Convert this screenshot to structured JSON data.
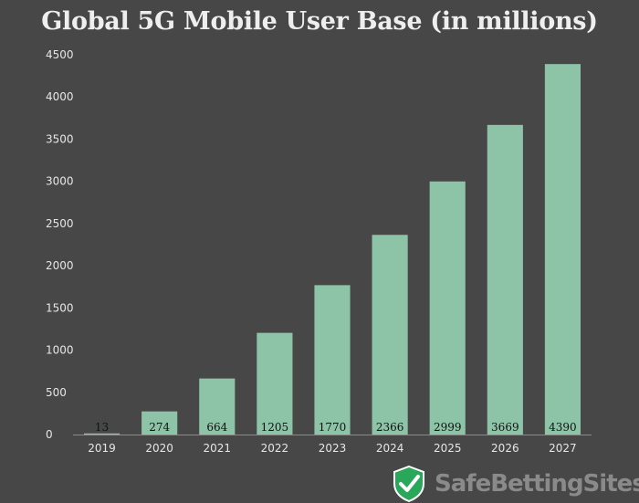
{
  "chart_data": {
    "type": "bar",
    "title": "Global 5G Mobile User Base (in millions)",
    "xlabel": "",
    "ylabel": "",
    "categories": [
      "2019",
      "2020",
      "2021",
      "2022",
      "2023",
      "2024",
      "2025",
      "2026",
      "2027"
    ],
    "values": [
      13,
      274,
      664,
      1205,
      1770,
      2366,
      2999,
      3669,
      4390
    ],
    "data_labels": [
      "13",
      "274",
      "664",
      "1205",
      "1770",
      "2366",
      "2999",
      "3669",
      "4390"
    ],
    "ylim": [
      0,
      4500
    ],
    "yticks": [
      "0",
      "500",
      "1000",
      "1500",
      "2000",
      "2500",
      "3000",
      "3500",
      "4000",
      "4500"
    ],
    "grid": false,
    "legend": "none",
    "bar_color": "#8dc4a8",
    "background_color": "#474747"
  },
  "watermark": {
    "brand": "SafeBettingSites",
    "icon": "shield-check-icon"
  }
}
